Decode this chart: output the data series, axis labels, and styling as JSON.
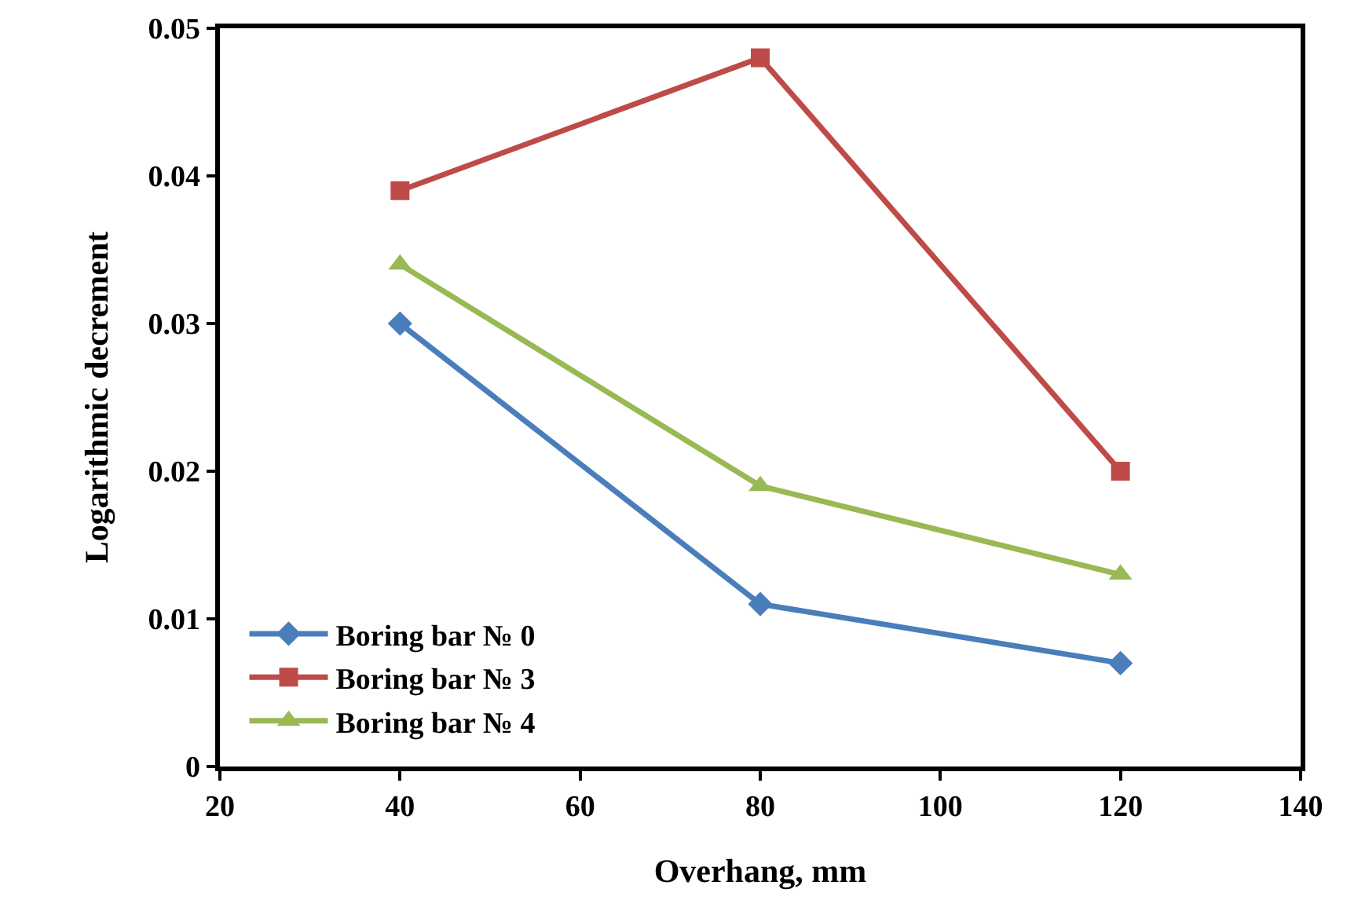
{
  "chart_data": {
    "type": "line",
    "xlabel": "Overhang, mm",
    "ylabel": "Logarithmic decrement",
    "x": [
      40,
      80,
      120
    ],
    "series": [
      {
        "name": "Boring bar № 0",
        "color": "#4a7ebb",
        "marker": "diamond",
        "values": [
          0.03,
          0.011,
          0.007
        ]
      },
      {
        "name": "Boring bar № 3",
        "color": "#be4b48",
        "marker": "square",
        "values": [
          0.039,
          0.048,
          0.02
        ]
      },
      {
        "name": "Boring bar № 4",
        "color": "#98b954",
        "marker": "triangle",
        "values": [
          0.034,
          0.019,
          0.013
        ]
      }
    ],
    "xlim": [
      20,
      140
    ],
    "xticks": [
      20,
      40,
      60,
      80,
      100,
      120,
      140
    ],
    "ylim": [
      0,
      0.05
    ],
    "yticks": [
      {
        "value": 0,
        "label": "0"
      },
      0.01,
      0.02,
      0.03,
      0.04,
      0.05
    ],
    "grid": false,
    "legend": "bottom left",
    "line_style": "solid"
  }
}
